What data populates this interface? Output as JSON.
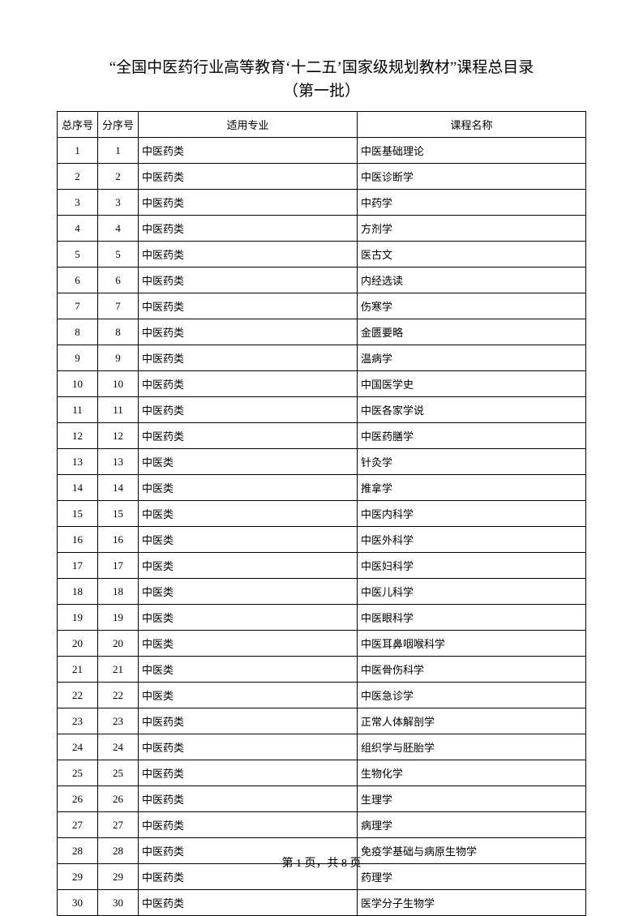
{
  "title_line1": "“全国中医药行业高等教育‘十二五’国家级规划教材”课程总目录",
  "title_line2": "（第一批）",
  "table": {
    "headers": {
      "total_seq": "总序号",
      "sub_seq": "分序号",
      "major": "适用专业",
      "course": "课程名称"
    },
    "rows": [
      {
        "total_seq": "1",
        "sub_seq": "1",
        "major": "中医药类",
        "course": "中医基础理论"
      },
      {
        "total_seq": "2",
        "sub_seq": "2",
        "major": "中医药类",
        "course": "中医诊断学"
      },
      {
        "total_seq": "3",
        "sub_seq": "3",
        "major": "中医药类",
        "course": "中药学"
      },
      {
        "total_seq": "4",
        "sub_seq": "4",
        "major": "中医药类",
        "course": "方剂学"
      },
      {
        "total_seq": "5",
        "sub_seq": "5",
        "major": "中医药类",
        "course": "医古文"
      },
      {
        "total_seq": "6",
        "sub_seq": "6",
        "major": "中医药类",
        "course": "内经选读"
      },
      {
        "total_seq": "7",
        "sub_seq": "7",
        "major": "中医药类",
        "course": "伤寒学"
      },
      {
        "total_seq": "8",
        "sub_seq": "8",
        "major": "中医药类",
        "course": "金匮要略"
      },
      {
        "total_seq": "9",
        "sub_seq": "9",
        "major": "中医药类",
        "course": "温病学"
      },
      {
        "total_seq": "10",
        "sub_seq": "10",
        "major": "中医药类",
        "course": "中国医学史"
      },
      {
        "total_seq": "11",
        "sub_seq": "11",
        "major": "中医药类",
        "course": "中医各家学说"
      },
      {
        "total_seq": "12",
        "sub_seq": "12",
        "major": "中医药类",
        "course": "中医药膳学"
      },
      {
        "total_seq": "13",
        "sub_seq": "13",
        "major": "中医类",
        "course": "针灸学"
      },
      {
        "total_seq": "14",
        "sub_seq": "14",
        "major": "中医类",
        "course": "推拿学"
      },
      {
        "total_seq": "15",
        "sub_seq": "15",
        "major": "中医类",
        "course": "中医内科学"
      },
      {
        "total_seq": "16",
        "sub_seq": "16",
        "major": "中医类",
        "course": "中医外科学"
      },
      {
        "total_seq": "17",
        "sub_seq": "17",
        "major": "中医类",
        "course": "中医妇科学"
      },
      {
        "total_seq": "18",
        "sub_seq": "18",
        "major": "中医类",
        "course": "中医儿科学"
      },
      {
        "total_seq": "19",
        "sub_seq": "19",
        "major": "中医类",
        "course": "中医眼科学"
      },
      {
        "total_seq": "20",
        "sub_seq": "20",
        "major": "中医类",
        "course": "中医耳鼻咽喉科学"
      },
      {
        "total_seq": "21",
        "sub_seq": "21",
        "major": "中医类",
        "course": "中医骨伤科学"
      },
      {
        "total_seq": "22",
        "sub_seq": "22",
        "major": "中医类",
        "course": "中医急诊学"
      },
      {
        "total_seq": "23",
        "sub_seq": "23",
        "major": "中医药类",
        "course": "正常人体解剖学"
      },
      {
        "total_seq": "24",
        "sub_seq": "24",
        "major": "中医药类",
        "course": "组织学与胚胎学"
      },
      {
        "total_seq": "25",
        "sub_seq": "25",
        "major": "中医药类",
        "course": "生物化学"
      },
      {
        "total_seq": "26",
        "sub_seq": "26",
        "major": "中医药类",
        "course": "生理学"
      },
      {
        "total_seq": "27",
        "sub_seq": "27",
        "major": "中医药类",
        "course": "病理学"
      },
      {
        "total_seq": "28",
        "sub_seq": "28",
        "major": "中医药类",
        "course": "免疫学基础与病原生物学"
      },
      {
        "total_seq": "29",
        "sub_seq": "29",
        "major": "中医药类",
        "course": "药理学"
      },
      {
        "total_seq": "30",
        "sub_seq": "30",
        "major": "中医药类",
        "course": "医学分子生物学"
      }
    ]
  },
  "footer": "第 1 页，共 8 页"
}
